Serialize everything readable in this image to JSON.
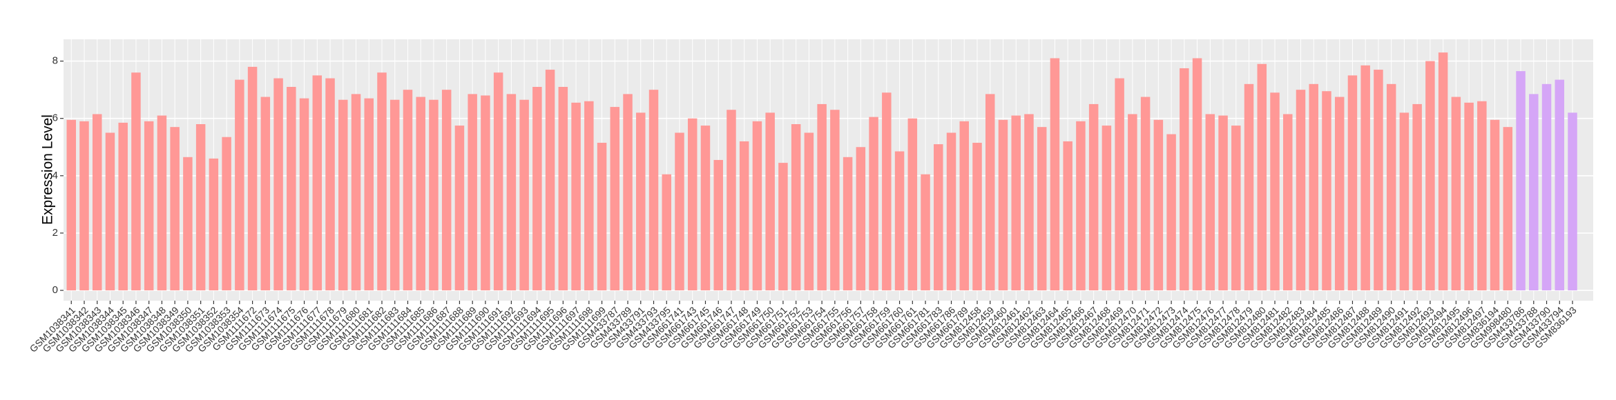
{
  "chart_data": {
    "type": "bar",
    "y_label": "Expression Level",
    "categories": [
      "GSM1038341",
      "GSM1038342",
      "GSM1038343",
      "GSM1038344",
      "GSM1038345",
      "GSM1038346",
      "GSM1038347",
      "GSM1038348",
      "GSM1038349",
      "GSM1038350",
      "GSM1038351",
      "GSM1038352",
      "GSM1038353",
      "GSM1038354",
      "GSM1111672",
      "GSM1111673",
      "GSM1111674",
      "GSM1111675",
      "GSM1111676",
      "GSM1111677",
      "GSM1111678",
      "GSM1111679",
      "GSM1111680",
      "GSM1111681",
      "GSM1111682",
      "GSM1111683",
      "GSM1111684",
      "GSM1111685",
      "GSM1111686",
      "GSM1111687",
      "GSM1111688",
      "GSM1111689",
      "GSM1111690",
      "GSM1111691",
      "GSM1111692",
      "GSM1111693",
      "GSM1111694",
      "GSM1111695",
      "GSM1111696",
      "GSM1111697",
      "GSM1111698",
      "GSM1111699",
      "GSM433787",
      "GSM433789",
      "GSM433791",
      "GSM433793",
      "GSM433795",
      "GSM661741",
      "GSM661743",
      "GSM661745",
      "GSM661746",
      "GSM661747",
      "GSM661748",
      "GSM661749",
      "GSM661750",
      "GSM661751",
      "GSM661752",
      "GSM661753",
      "GSM661754",
      "GSM661755",
      "GSM661756",
      "GSM661757",
      "GSM661758",
      "GSM661759",
      "GSM661760",
      "GSM661761",
      "GSM661781",
      "GSM661783",
      "GSM661786",
      "GSM661789",
      "GSM812458",
      "GSM812459",
      "GSM812460",
      "GSM812461",
      "GSM812462",
      "GSM812463",
      "GSM812464",
      "GSM812465",
      "GSM812466",
      "GSM812467",
      "GSM812468",
      "GSM812469",
      "GSM812470",
      "GSM812471",
      "GSM812472",
      "GSM812473",
      "GSM812474",
      "GSM812475",
      "GSM812476",
      "GSM812477",
      "GSM812478",
      "GSM812479",
      "GSM812480",
      "GSM812481",
      "GSM812482",
      "GSM812483",
      "GSM812484",
      "GSM812485",
      "GSM812486",
      "GSM812487",
      "GSM812488",
      "GSM812489",
      "GSM812490",
      "GSM812491",
      "GSM812492",
      "GSM812493",
      "GSM812494",
      "GSM812495",
      "GSM812496",
      "GSM812497",
      "GSM836194",
      "GSM998480",
      "GSM433786",
      "GSM433788",
      "GSM433790",
      "GSM433794",
      "GSM836193"
    ],
    "values": [
      5.95,
      5.9,
      6.15,
      5.5,
      5.85,
      7.6,
      5.9,
      6.1,
      5.7,
      4.65,
      5.8,
      4.6,
      5.35,
      7.35,
      7.8,
      6.75,
      7.4,
      7.1,
      6.7,
      7.5,
      7.4,
      6.65,
      6.85,
      6.7,
      7.6,
      6.65,
      7.0,
      6.75,
      6.65,
      7.0,
      5.75,
      6.85,
      6.8,
      7.6,
      6.85,
      6.65,
      7.1,
      7.7,
      7.1,
      6.55,
      6.6,
      5.15,
      6.4,
      6.85,
      6.2,
      7.0,
      4.05,
      5.5,
      6.0,
      5.75,
      4.55,
      6.3,
      5.2,
      5.9,
      6.2,
      4.45,
      5.8,
      5.5,
      6.5,
      6.3,
      4.65,
      5.0,
      6.05,
      6.9,
      4.85,
      6.0,
      4.05,
      5.1,
      5.5,
      5.9,
      5.15,
      6.85,
      5.95,
      6.1,
      6.15,
      5.7,
      8.1,
      5.2,
      5.9,
      6.5,
      5.75,
      7.4,
      6.15,
      6.75,
      5.95,
      5.45,
      7.75,
      8.1,
      6.15,
      6.1,
      5.75,
      7.2,
      7.9,
      6.9,
      6.15,
      7.0,
      7.2,
      6.95,
      6.75,
      7.5,
      7.85,
      7.7,
      7.2,
      6.2,
      6.5,
      8.0,
      8.3,
      6.75,
      6.55,
      6.6,
      5.95,
      5.7,
      7.65,
      6.85,
      7.2,
      7.35,
      6.2
    ],
    "colors": [
      "#ff9896",
      "#ff9896",
      "#ff9896",
      "#ff9896",
      "#ff9896",
      "#ff9896",
      "#ff9896",
      "#ff9896",
      "#ff9896",
      "#ff9896",
      "#ff9896",
      "#ff9896",
      "#ff9896",
      "#ff9896",
      "#ff9896",
      "#ff9896",
      "#ff9896",
      "#ff9896",
      "#ff9896",
      "#ff9896",
      "#ff9896",
      "#ff9896",
      "#ff9896",
      "#ff9896",
      "#ff9896",
      "#ff9896",
      "#ff9896",
      "#ff9896",
      "#ff9896",
      "#ff9896",
      "#ff9896",
      "#ff9896",
      "#ff9896",
      "#ff9896",
      "#ff9896",
      "#ff9896",
      "#ff9896",
      "#ff9896",
      "#ff9896",
      "#ff9896",
      "#ff9896",
      "#ff9896",
      "#ff9896",
      "#ff9896",
      "#ff9896",
      "#ff9896",
      "#ff9896",
      "#ff9896",
      "#ff9896",
      "#ff9896",
      "#ff9896",
      "#ff9896",
      "#ff9896",
      "#ff9896",
      "#ff9896",
      "#ff9896",
      "#ff9896",
      "#ff9896",
      "#ff9896",
      "#ff9896",
      "#ff9896",
      "#ff9896",
      "#ff9896",
      "#ff9896",
      "#ff9896",
      "#ff9896",
      "#ff9896",
      "#ff9896",
      "#ff9896",
      "#ff9896",
      "#ff9896",
      "#ff9896",
      "#ff9896",
      "#ff9896",
      "#ff9896",
      "#ff9896",
      "#ff9896",
      "#ff9896",
      "#ff9896",
      "#ff9896",
      "#ff9896",
      "#ff9896",
      "#ff9896",
      "#ff9896",
      "#ff9896",
      "#ff9896",
      "#ff9896",
      "#ff9896",
      "#ff9896",
      "#ff9896",
      "#ff9896",
      "#ff9896",
      "#ff9896",
      "#ff9896",
      "#ff9896",
      "#ff9896",
      "#ff9896",
      "#ff9896",
      "#ff9896",
      "#ff9896",
      "#ff9896",
      "#ff9896",
      "#ff9896",
      "#ff9896",
      "#ff9896",
      "#ff9896",
      "#ff9896",
      "#ff9896",
      "#ff9896",
      "#ff9896",
      "#ff9896",
      "#ff9896",
      "#d5a6f7",
      "#d5a6f7",
      "#d5a6f7",
      "#d5a6f7",
      "#d5a6f7"
    ],
    "ylim": [
      -0.36,
      8.76
    ],
    "yticks": [
      0,
      2,
      4,
      6,
      8
    ],
    "grid": true
  }
}
